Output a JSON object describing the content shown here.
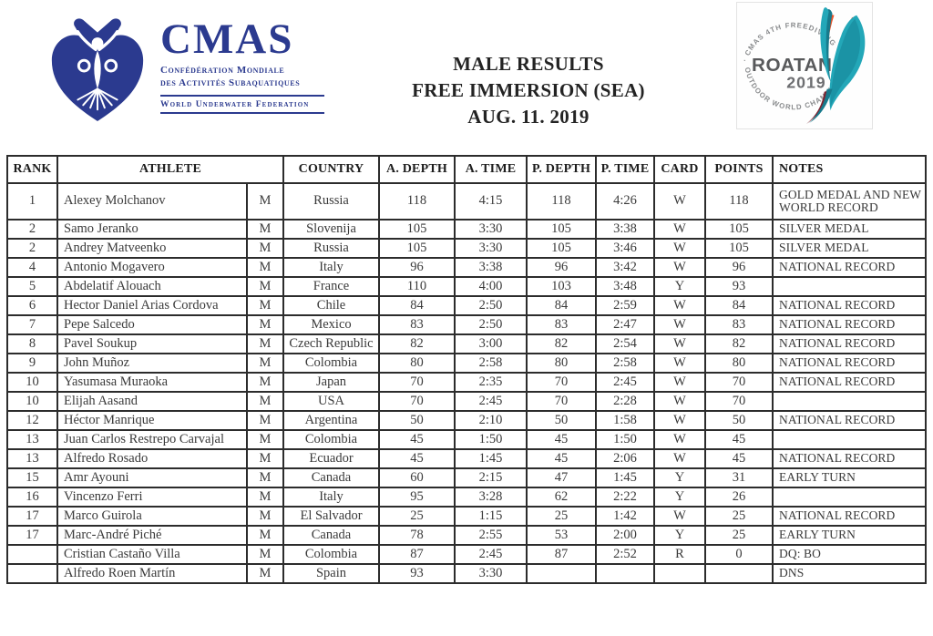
{
  "header": {
    "cmas": {
      "name": "CMAS",
      "sub_line1": "Confédération Mondiale",
      "sub_line2": "des Activités Subaquatiques",
      "federation_line": "World Underwater Federation"
    },
    "title_lines": {
      "line1": "MALE RESULTS",
      "line2": "FREE IMMERSION (SEA)",
      "line3": "AUG. 11. 2019"
    },
    "roatan": {
      "arc_top": "· CMAS 4TH FREEDIVING",
      "arc_bottom": "OUTDOOR WORLD CHAMPIONSHIP ·",
      "name": "ROATAN",
      "year": "2019"
    }
  },
  "colors": {
    "navy": "#2b3a8f",
    "teal": "#23a7b8",
    "teal_dark": "#177a8c",
    "orange": "#e8542a",
    "maroon": "#7c2330",
    "logo_gray": "#58595b",
    "border": "#2c2c2c"
  },
  "table": {
    "columns": [
      "RANK",
      "ATHLETE",
      "COUNTRY",
      "A. DEPTH",
      "A. TIME",
      "P. DEPTH",
      "P. TIME",
      "CARD",
      "POINTS",
      "NOTES"
    ],
    "row_fields": [
      "rank",
      "athlete",
      "gender",
      "country",
      "a_depth",
      "a_time",
      "p_depth",
      "p_time",
      "card",
      "points",
      "notes"
    ],
    "rows": [
      {
        "rank": "1",
        "athlete": "Alexey Molchanov",
        "gender": "M",
        "country": "Russia",
        "a_depth": "118",
        "a_time": "4:15",
        "p_depth": "118",
        "p_time": "4:26",
        "card": "W",
        "points": "118",
        "notes": "GOLD MEDAL AND NEW WORLD RECORD",
        "tall": true
      },
      {
        "rank": "2",
        "athlete": "Samo Jeranko",
        "gender": "M",
        "country": "Slovenija",
        "a_depth": "105",
        "a_time": "3:30",
        "p_depth": "105",
        "p_time": "3:38",
        "card": "W",
        "points": "105",
        "notes": "SILVER MEDAL"
      },
      {
        "rank": "2",
        "athlete": "Andrey Matveenko",
        "gender": "M",
        "country": "Russia",
        "a_depth": "105",
        "a_time": "3:30",
        "p_depth": "105",
        "p_time": "3:46",
        "card": "W",
        "points": "105",
        "notes": "SILVER MEDAL"
      },
      {
        "rank": "4",
        "athlete": "Antonio Mogavero",
        "gender": "M",
        "country": "Italy",
        "a_depth": "96",
        "a_time": "3:38",
        "p_depth": "96",
        "p_time": "3:42",
        "card": "W",
        "points": "96",
        "notes": "NATIONAL RECORD"
      },
      {
        "rank": "5",
        "athlete": "Abdelatif Alouach",
        "gender": "M",
        "country": "France",
        "a_depth": "110",
        "a_time": "4:00",
        "p_depth": "103",
        "p_time": "3:48",
        "card": "Y",
        "points": "93",
        "notes": ""
      },
      {
        "rank": "6",
        "athlete": "Hector Daniel Arias Cordova",
        "gender": "M",
        "country": "Chile",
        "a_depth": "84",
        "a_time": "2:50",
        "p_depth": "84",
        "p_time": "2:59",
        "card": "W",
        "points": "84",
        "notes": "NATIONAL RECORD"
      },
      {
        "rank": "7",
        "athlete": "Pepe Salcedo",
        "gender": "M",
        "country": "Mexico",
        "a_depth": "83",
        "a_time": "2:50",
        "p_depth": "83",
        "p_time": "2:47",
        "card": "W",
        "points": "83",
        "notes": "NATIONAL RECORD"
      },
      {
        "rank": "8",
        "athlete": "Pavel Soukup",
        "gender": "M",
        "country": "Czech Republic",
        "a_depth": "82",
        "a_time": "3:00",
        "p_depth": "82",
        "p_time": "2:54",
        "card": "W",
        "points": "82",
        "notes": "NATIONAL RECORD"
      },
      {
        "rank": "9",
        "athlete": "John Muñoz",
        "gender": "M",
        "country": "Colombia",
        "a_depth": "80",
        "a_time": "2:58",
        "p_depth": "80",
        "p_time": "2:58",
        "card": "W",
        "points": "80",
        "notes": "NATIONAL RECORD"
      },
      {
        "rank": "10",
        "athlete": "Yasumasa Muraoka",
        "gender": "M",
        "country": "Japan",
        "a_depth": "70",
        "a_time": "2:35",
        "p_depth": "70",
        "p_time": "2:45",
        "card": "W",
        "points": "70",
        "notes": "NATIONAL RECORD"
      },
      {
        "rank": "10",
        "athlete": "Elijah Aasand",
        "gender": "M",
        "country": "USA",
        "a_depth": "70",
        "a_time": "2:45",
        "p_depth": "70",
        "p_time": "2:28",
        "card": "W",
        "points": "70",
        "notes": ""
      },
      {
        "rank": "12",
        "athlete": "Héctor Manrique",
        "gender": "M",
        "country": "Argentina",
        "a_depth": "50",
        "a_time": "2:10",
        "p_depth": "50",
        "p_time": "1:58",
        "card": "W",
        "points": "50",
        "notes": "NATIONAL RECORD"
      },
      {
        "rank": "13",
        "athlete": "Juan Carlos Restrepo Carvajal",
        "gender": "M",
        "country": "Colombia",
        "a_depth": "45",
        "a_time": "1:50",
        "p_depth": "45",
        "p_time": "1:50",
        "card": "W",
        "points": "45",
        "notes": ""
      },
      {
        "rank": "13",
        "athlete": "Alfredo Rosado",
        "gender": "M",
        "country": "Ecuador",
        "a_depth": "45",
        "a_time": "1:45",
        "p_depth": "45",
        "p_time": "2:06",
        "card": "W",
        "points": "45",
        "notes": "NATIONAL RECORD"
      },
      {
        "rank": "15",
        "athlete": "Amr Ayouni",
        "gender": "M",
        "country": "Canada",
        "a_depth": "60",
        "a_time": "2:15",
        "p_depth": "47",
        "p_time": "1:45",
        "card": "Y",
        "points": "31",
        "notes": "EARLY TURN"
      },
      {
        "rank": "16",
        "athlete": "Vincenzo Ferri",
        "gender": "M",
        "country": "Italy",
        "a_depth": "95",
        "a_time": "3:28",
        "p_depth": "62",
        "p_time": "2:22",
        "card": "Y",
        "points": "26",
        "notes": ""
      },
      {
        "rank": "17",
        "athlete": "Marco Guirola",
        "gender": "M",
        "country": "El Salvador",
        "a_depth": "25",
        "a_time": "1:15",
        "p_depth": "25",
        "p_time": "1:42",
        "card": "W",
        "points": "25",
        "notes": "NATIONAL RECORD"
      },
      {
        "rank": "17",
        "athlete": "Marc-André Piché",
        "gender": "M",
        "country": "Canada",
        "a_depth": "78",
        "a_time": "2:55",
        "p_depth": "53",
        "p_time": "2:00",
        "card": "Y",
        "points": "25",
        "notes": "EARLY TURN"
      },
      {
        "rank": "",
        "athlete": "Cristian Castaño Villa",
        "gender": "M",
        "country": "Colombia",
        "a_depth": "87",
        "a_time": "2:45",
        "p_depth": "87",
        "p_time": "2:52",
        "card": "R",
        "points": "0",
        "notes": "DQ: BO"
      },
      {
        "rank": "",
        "athlete": "Alfredo Roen Martín",
        "gender": "M",
        "country": "Spain",
        "a_depth": "93",
        "a_time": "3:30",
        "p_depth": "",
        "p_time": "",
        "card": "",
        "points": "",
        "notes": "DNS"
      }
    ]
  }
}
